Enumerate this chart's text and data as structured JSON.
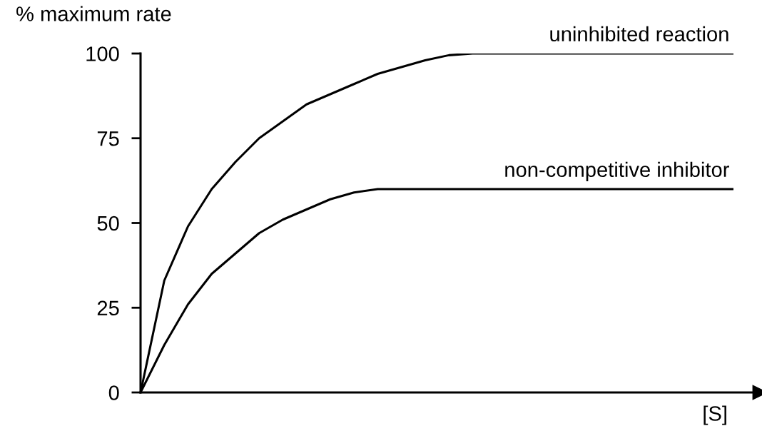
{
  "chart_data": {
    "type": "line",
    "ylabel": "% maximum rate",
    "xlabel": "[S]",
    "categories": [
      null,
      null,
      null,
      null,
      null,
      null,
      null,
      null,
      null,
      null,
      null,
      null,
      null,
      null,
      null,
      null,
      null,
      null,
      null,
      null,
      null,
      null,
      null,
      null,
      null,
      null
    ],
    "series": [
      {
        "name": "uninhibited reaction",
        "color": "#000000",
        "values": [
          0,
          33,
          49,
          60,
          68,
          75,
          80,
          85,
          88,
          91,
          94,
          96,
          98,
          99.5,
          100,
          100,
          100,
          100,
          100,
          100,
          100,
          100,
          100,
          100,
          100,
          100
        ]
      },
      {
        "name": "non-competitive inhibitor",
        "color": "#000000",
        "values": [
          0,
          14,
          26,
          35,
          41,
          47,
          51,
          54,
          57,
          59,
          60,
          60,
          60,
          60,
          60,
          60,
          60,
          60,
          60,
          60,
          60,
          60,
          60,
          60,
          60,
          60
        ]
      }
    ],
    "ylim": [
      0,
      100
    ],
    "yticks": [
      0,
      25,
      50,
      75,
      100
    ],
    "grid": false,
    "legend": false,
    "marker": "none",
    "line_style": "solid"
  }
}
